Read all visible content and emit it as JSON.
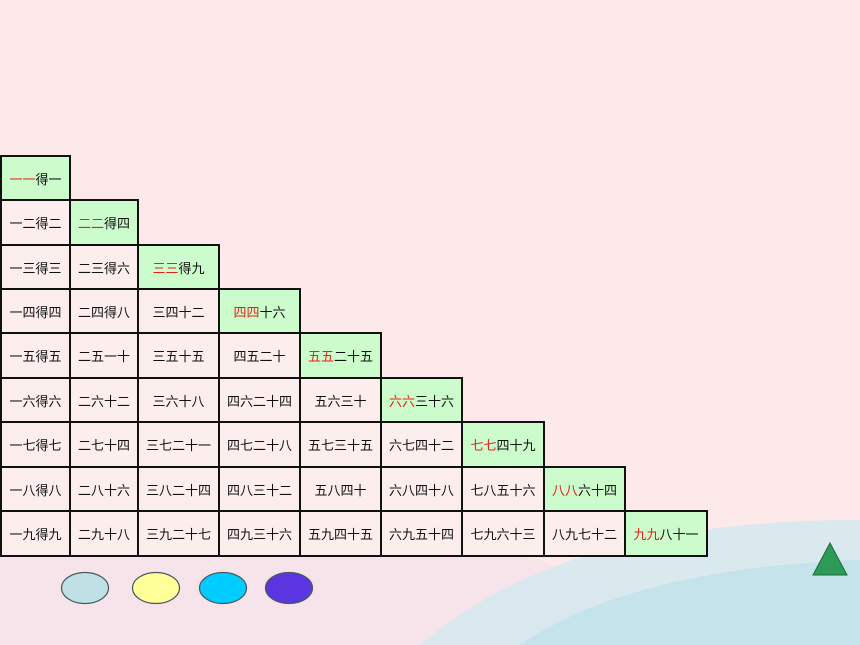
{
  "colors": {
    "background": "#fde8ea",
    "cell": "#fdeeee",
    "diagonal_cell": "#ccfccc",
    "highlight_text": "#e8201a",
    "border": "#111111"
  },
  "table_rows": [
    [
      {
        "prefix": "一一",
        "rest": "得一"
      }
    ],
    [
      "一二得二",
      {
        "prefix": "二二",
        "rest": "得四"
      }
    ],
    [
      "一三得三",
      "二三得六",
      {
        "prefix": "三三",
        "rest": "得九"
      }
    ],
    [
      "一四得四",
      "二四得八",
      "三四十二",
      {
        "prefix": "四四",
        "rest": "十六"
      }
    ],
    [
      "一五得五",
      "二五一十",
      "三五十五",
      "四五二十",
      {
        "prefix": "五五",
        "rest": "二十五"
      }
    ],
    [
      "一六得六",
      "二六十二",
      "三六十八",
      "四六二十四",
      "五六三十",
      {
        "prefix": "六六",
        "rest": "三十六"
      }
    ],
    [
      "一七得七",
      "二七十四",
      "三七二十一",
      "四七二十八",
      "五七三十五",
      "六七四十二",
      {
        "prefix": "七七",
        "rest": "四十九"
      }
    ],
    [
      "一八得八",
      "二八十六",
      "三八二十四",
      "四八三十二",
      "五八四十",
      "六八四十八",
      "七八五十六",
      {
        "prefix": "八八",
        "rest": "六十四"
      }
    ],
    [
      "一九得九",
      "二九十八",
      "三九二十七",
      "四九三十六",
      "五九四十五",
      "六九五十四",
      "七九六十三",
      "八九七十二",
      {
        "prefix": "九九",
        "rest": "八十一"
      }
    ]
  ],
  "controls": {
    "buttons": [
      {
        "name": "light-blue-oval-button",
        "color": "#bfe0e4"
      },
      {
        "name": "yellow-oval-button",
        "color": "#ffff99"
      },
      {
        "name": "cyan-oval-button",
        "color": "#00ccff"
      },
      {
        "name": "purple-oval-button",
        "color": "#5b36e0"
      }
    ],
    "triangle_color": "#2e9a57"
  }
}
